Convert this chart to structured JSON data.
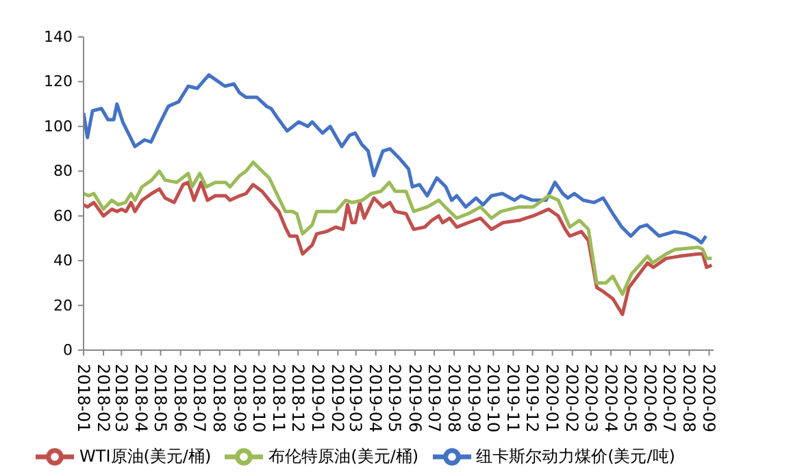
{
  "chart_data": {
    "type": "line",
    "legend": "bottom",
    "marker": "none",
    "line_style": "solid",
    "xlim": [
      "2018-01-01",
      "2020-09-08"
    ],
    "xticks": [
      "2018-01",
      "2018-02",
      "2018-03",
      "2018-04",
      "2018-05",
      "2018-06",
      "2018-07",
      "2018-08",
      "2018-09",
      "2018-10",
      "2018-11",
      "2018-12",
      "2019-01",
      "2019-02",
      "2019-03",
      "2019-04",
      "2019-05",
      "2019-06",
      "2019-07",
      "2019-08",
      "2019-09",
      "2019-10",
      "2019-11",
      "2019-12",
      "2020-01",
      "2020-02",
      "2020-03",
      "2020-04",
      "2020-05",
      "2020-06",
      "2020-07",
      "2020-08",
      "2020-09"
    ],
    "ylim": [
      0,
      140
    ],
    "yticks": [
      0,
      20,
      40,
      60,
      80,
      100,
      120,
      140
    ],
    "series": [
      {
        "name": "纽卡斯尔动力煤价(美元/吨)",
        "color": "#4472c4",
        "x": [
          "2018-01-01",
          "2018-01-07",
          "2018-01-15",
          "2018-01-29",
          "2018-02-08",
          "2018-02-17",
          "2018-02-22",
          "2018-03-03",
          "2018-03-22",
          "2018-04-06",
          "2018-04-16",
          "2018-04-29",
          "2018-05-13",
          "2018-05-29",
          "2018-06-13",
          "2018-06-27",
          "2018-07-15",
          "2018-07-25",
          "2018-08-09",
          "2018-08-23",
          "2018-09-01",
          "2018-09-11",
          "2018-09-28",
          "2018-10-13",
          "2018-10-20",
          "2018-11-01",
          "2018-11-14",
          "2018-12-02",
          "2018-12-16",
          "2018-12-23",
          "2019-01-08",
          "2019-01-20",
          "2019-01-28",
          "2019-02-07",
          "2019-02-19",
          "2019-02-28",
          "2019-03-10",
          "2019-03-20",
          "2019-03-29",
          "2019-04-12",
          "2019-04-23",
          "2019-05-07",
          "2019-05-22",
          "2019-05-28",
          "2019-06-08",
          "2019-06-20",
          "2019-07-05",
          "2019-07-19",
          "2019-07-28",
          "2019-08-05",
          "2019-08-19",
          "2019-09-04",
          "2019-09-15",
          "2019-09-28",
          "2019-10-15",
          "2019-11-03",
          "2019-11-13",
          "2019-12-01",
          "2019-12-22",
          "2020-01-05",
          "2020-01-17",
          "2020-01-25",
          "2020-02-04",
          "2020-02-18",
          "2020-03-06",
          "2020-03-20",
          "2020-04-04",
          "2020-04-18",
          "2020-05-02",
          "2020-05-16",
          "2020-05-27",
          "2020-06-15",
          "2020-07-09",
          "2020-07-27",
          "2020-08-11",
          "2020-08-20",
          "2020-08-27"
        ],
        "values": [
          106,
          95,
          107,
          108,
          103,
          103,
          110,
          102,
          91,
          94,
          93,
          101,
          109,
          111,
          118,
          117,
          123,
          121,
          118,
          119,
          115,
          113,
          113,
          109,
          108,
          103,
          98,
          102,
          100,
          102,
          97,
          100,
          96,
          91,
          96,
          97,
          92,
          89,
          78,
          89,
          90,
          86,
          81,
          73,
          74,
          69,
          77,
          73,
          67,
          69,
          64,
          68,
          65,
          69,
          70,
          67,
          69,
          67,
          67,
          75,
          70,
          68,
          70,
          67,
          66,
          68,
          61,
          55,
          51,
          55,
          56,
          51,
          53,
          52,
          50,
          48,
          51
        ]
      },
      {
        "name": "WTI原油(美元/桶)",
        "color": "#c0504d",
        "x": [
          "2018-01-01",
          "2018-01-07",
          "2018-01-17",
          "2018-02-01",
          "2018-02-14",
          "2018-02-22",
          "2018-03-01",
          "2018-03-08",
          "2018-03-16",
          "2018-03-22",
          "2018-04-02",
          "2018-04-17",
          "2018-04-29",
          "2018-05-08",
          "2018-05-22",
          "2018-06-05",
          "2018-06-13",
          "2018-06-22",
          "2018-07-03",
          "2018-07-13",
          "2018-07-25",
          "2018-08-10",
          "2018-08-17",
          "2018-09-01",
          "2018-09-11",
          "2018-09-22",
          "2018-10-06",
          "2018-10-20",
          "2018-11-01",
          "2018-11-11",
          "2018-11-18",
          "2018-11-29",
          "2018-12-08",
          "2018-12-23",
          "2018-12-30",
          "2019-01-14",
          "2019-01-29",
          "2019-02-09",
          "2019-02-16",
          "2019-02-23",
          "2019-02-28",
          "2019-03-07",
          "2019-03-14",
          "2019-03-29",
          "2019-04-12",
          "2019-04-23",
          "2019-05-01",
          "2019-05-18",
          "2019-05-30",
          "2019-06-16",
          "2019-06-27",
          "2019-07-08",
          "2019-07-14",
          "2019-07-25",
          "2019-08-05",
          "2019-08-23",
          "2019-09-11",
          "2019-09-28",
          "2019-10-16",
          "2019-11-10",
          "2019-12-02",
          "2019-12-26",
          "2020-01-10",
          "2020-01-21",
          "2020-01-28",
          "2020-02-15",
          "2020-02-26",
          "2020-03-10",
          "2020-03-21",
          "2020-04-04",
          "2020-04-19",
          "2020-04-29",
          "2020-05-28",
          "2020-06-06",
          "2020-06-26",
          "2020-07-17",
          "2020-08-15",
          "2020-08-22",
          "2020-08-28",
          "2020-09-05"
        ],
        "values": [
          65,
          64,
          66,
          60,
          63,
          62,
          63,
          62,
          66,
          62,
          67,
          70,
          72,
          68,
          66,
          74,
          75,
          67,
          75,
          67,
          69,
          69,
          67,
          69,
          70,
          74,
          71,
          66,
          62,
          55,
          51,
          51,
          43,
          47,
          52,
          53,
          55,
          54,
          65,
          57,
          57,
          66,
          59,
          68,
          64,
          66,
          62,
          61,
          54,
          55,
          58,
          60,
          57,
          59,
          55,
          57,
          59,
          54,
          57,
          58,
          60,
          63,
          60,
          54,
          51,
          53,
          49,
          28,
          26,
          23,
          16,
          28,
          39,
          37,
          41,
          42,
          43,
          43,
          37,
          38
        ]
      },
      {
        "name": "布伦特原油(美元/桶)",
        "color": "#9bbb59",
        "x": [
          "2018-01-01",
          "2018-01-09",
          "2018-01-17",
          "2018-02-01",
          "2018-02-14",
          "2018-02-24",
          "2018-03-07",
          "2018-03-16",
          "2018-03-22",
          "2018-04-02",
          "2018-04-17",
          "2018-04-29",
          "2018-05-08",
          "2018-05-26",
          "2018-06-13",
          "2018-06-19",
          "2018-07-01",
          "2018-07-11",
          "2018-07-25",
          "2018-08-10",
          "2018-08-17",
          "2018-09-01",
          "2018-09-11",
          "2018-09-22",
          "2018-10-06",
          "2018-10-17",
          "2018-10-27",
          "2018-11-11",
          "2018-11-22",
          "2018-11-29",
          "2018-12-08",
          "2018-12-23",
          "2018-12-30",
          "2019-01-29",
          "2019-02-13",
          "2019-02-23",
          "2019-03-11",
          "2019-03-25",
          "2019-04-09",
          "2019-04-22",
          "2019-05-01",
          "2019-05-18",
          "2019-05-30",
          "2019-06-20",
          "2019-07-08",
          "2019-07-18",
          "2019-08-05",
          "2019-08-23",
          "2019-09-11",
          "2019-09-28",
          "2019-10-13",
          "2019-11-10",
          "2019-12-02",
          "2019-12-26",
          "2020-01-10",
          "2020-01-28",
          "2020-02-12",
          "2020-02-26",
          "2020-03-10",
          "2020-03-24",
          "2020-04-04",
          "2020-04-19",
          "2020-05-03",
          "2020-05-28",
          "2020-06-05",
          "2020-06-26",
          "2020-07-10",
          "2020-08-15",
          "2020-08-22",
          "2020-08-28",
          "2020-09-05"
        ],
        "values": [
          70,
          69,
          70,
          63,
          67,
          65,
          66,
          70,
          67,
          73,
          76,
          80,
          76,
          75,
          79,
          73,
          79,
          73,
          75,
          75,
          73,
          78,
          80,
          84,
          80,
          77,
          71,
          62,
          62,
          61,
          52,
          56,
          62,
          62,
          67,
          66,
          67,
          70,
          71,
          75,
          71,
          71,
          62,
          64,
          67,
          64,
          59,
          61,
          64,
          59,
          62,
          64,
          64,
          69,
          67,
          55,
          58,
          54,
          30,
          30,
          33,
          25,
          34,
          42,
          39,
          43,
          45,
          46,
          45,
          41,
          41
        ]
      }
    ]
  }
}
